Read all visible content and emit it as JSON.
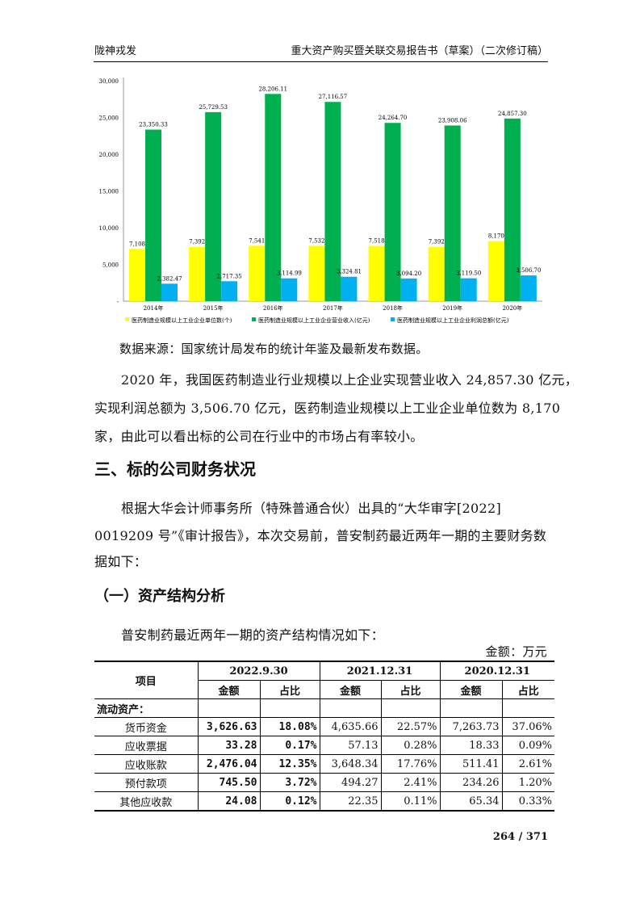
{
  "header": {
    "left": "陇神戎发",
    "right": "重大资产购买暨关联交易报告书（草案）（二次修订稿）"
  },
  "chart_data": {
    "type": "bar",
    "categories": [
      "2014年",
      "2015年",
      "2016年",
      "2017年",
      "2018年",
      "2019年",
      "2020年"
    ],
    "series": [
      {
        "name": "医药制造业规模以上工业企业单位数(个)",
        "color": "#ffff00",
        "values": [
          7108,
          7392,
          7541,
          7532,
          7518,
          7392,
          8170
        ],
        "labels": [
          "7,108",
          "7,392",
          "7,541",
          "7,532",
          "7,518",
          "7,392",
          "8,170"
        ]
      },
      {
        "name": "医药制造业规模以上工业企业营业收入(亿元)",
        "color": "#00b050",
        "values": [
          23350.33,
          25729.53,
          28206.11,
          27116.57,
          24264.7,
          23908.06,
          24857.3
        ],
        "labels": [
          "23,350.33",
          "25,729.53",
          "28,206.11",
          "27,116.57",
          "24,264.70",
          "23,908.06",
          "24,857.30"
        ]
      },
      {
        "name": "医药制造业规模以上工业企业利润总额(亿元)",
        "color": "#00b0f0",
        "values": [
          2382.47,
          2717.35,
          3114.99,
          3324.81,
          3094.2,
          3119.5,
          3506.7
        ],
        "labels": [
          "2,382.47",
          "2,717.35",
          "3,114.99",
          "3,324.81",
          "3,094.20",
          "3,119.50",
          "3,506.70"
        ]
      }
    ],
    "ylim": [
      0,
      30000
    ],
    "yticks": [
      "-",
      "5,000",
      "10,000",
      "15,000",
      "20,000",
      "25,000",
      "30,000"
    ],
    "legend": "bottom",
    "grid": false
  },
  "body": {
    "source": "数据来源：国家统计局发布的统计年鉴及最新发布数据。",
    "para1": [
      "2020 年，我国医药制造业行业规模以上企业实现营业收入 24,857.30 亿元，",
      "实现利润总额为 3,506.70 亿元，医药制造业规模以上工业企业单位数为 8,170",
      "家，由此可以看出标的公司在行业中的市场占有率较小。"
    ],
    "heading3": "三、标的公司财务状况",
    "para2": [
      "根据大华会计师事务所（特殊普通合伙）出具的“大华审字[2022]",
      "0019209 号”《审计报告》，本次交易前，普安制药最近两年一期的主要财务数",
      "据如下："
    ],
    "subheading": "（一）资产结构分析",
    "para3": "普安制药最近两年一期的资产结构情况如下：",
    "unit": "金额：万元"
  },
  "table": {
    "item_header": "项目",
    "periods": [
      "2022.9.30",
      "2021.12.31",
      "2020.12.31"
    ],
    "amount": "金额",
    "ratio": "占比",
    "section": "流动资产：",
    "rows": [
      {
        "name": "货币资金",
        "v": [
          "3,626.63",
          "18.08%",
          "4,635.66",
          "22.57%",
          "7,263.73",
          "37.06%"
        ]
      },
      {
        "name": "应收票据",
        "v": [
          "33.28",
          "0.17%",
          "57.13",
          "0.28%",
          "18.33",
          "0.09%"
        ]
      },
      {
        "name": "应收账款",
        "v": [
          "2,476.04",
          "12.35%",
          "3,648.34",
          "17.76%",
          "511.41",
          "2.61%"
        ]
      },
      {
        "name": "预付款项",
        "v": [
          "745.50",
          "3.72%",
          "494.27",
          "2.41%",
          "234.26",
          "1.20%"
        ]
      },
      {
        "name": "其他应收款",
        "v": [
          "24.08",
          "0.12%",
          "22.35",
          "0.11%",
          "65.34",
          "0.33%"
        ]
      }
    ]
  },
  "footer": {
    "page": "264 / 371"
  }
}
